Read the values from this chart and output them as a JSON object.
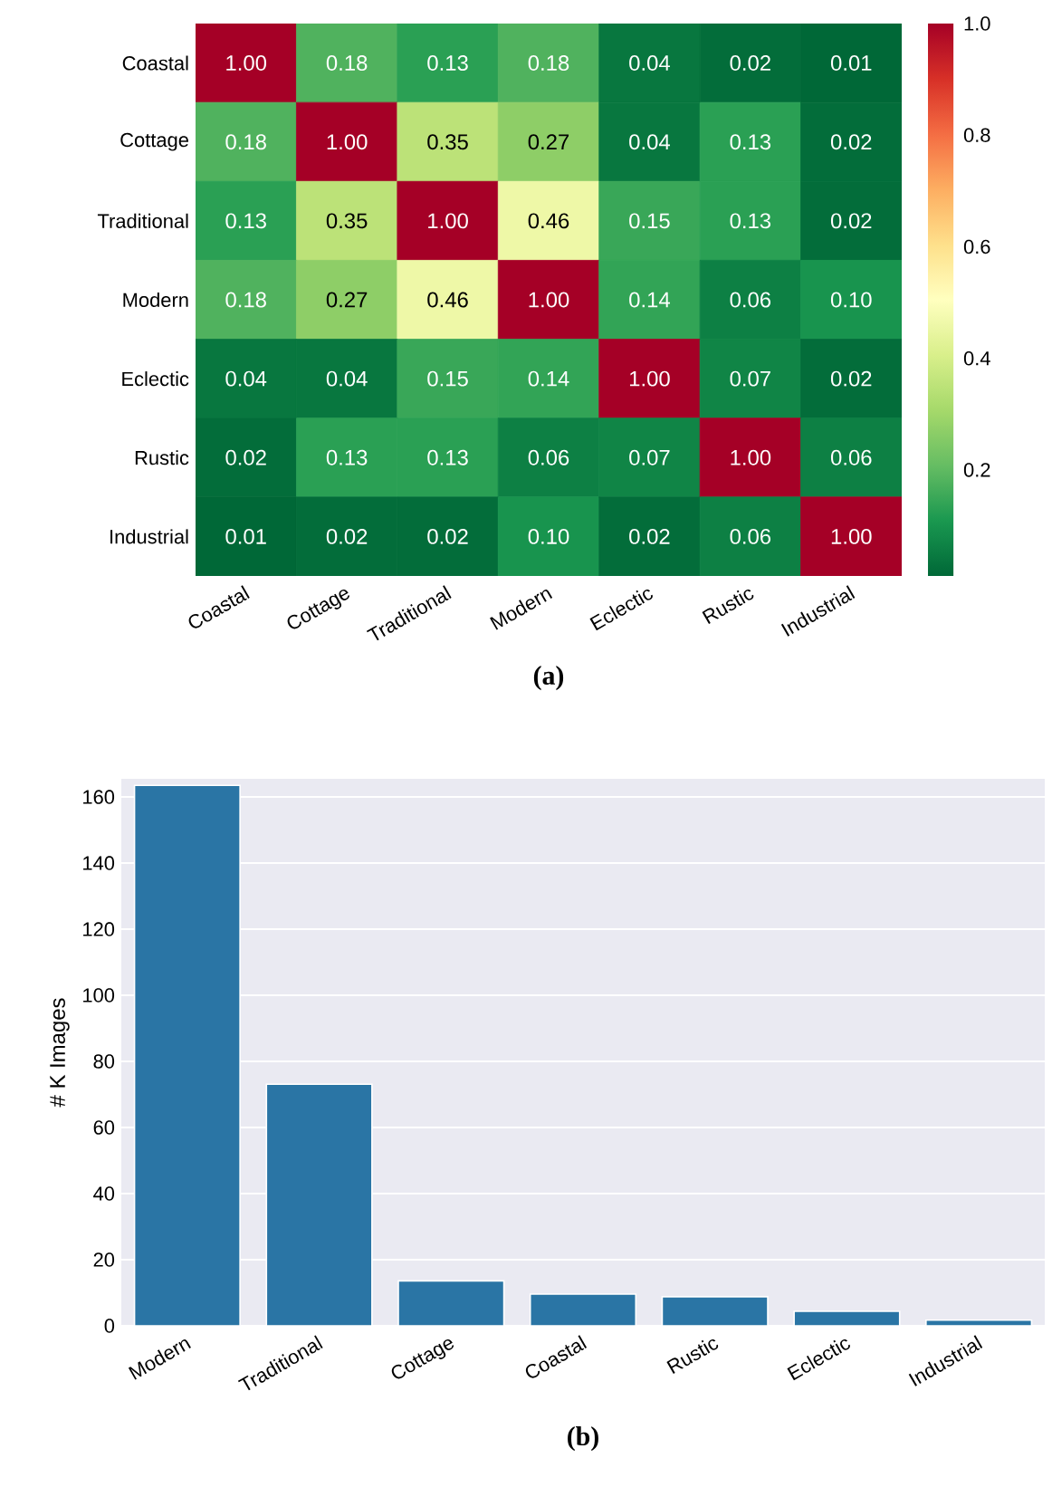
{
  "chart_data": [
    {
      "type": "heatmap",
      "title": "(a)",
      "categories": [
        "Coastal",
        "Cottage",
        "Traditional",
        "Modern",
        "Eclectic",
        "Rustic",
        "Industrial"
      ],
      "y_categories": [
        "Coastal",
        "Cottage",
        "Traditional",
        "Modern",
        "Eclectic",
        "Rustic",
        "Industrial"
      ],
      "cells": [
        [
          1.0,
          0.18,
          0.13,
          0.18,
          0.04,
          0.02,
          0.01
        ],
        [
          0.18,
          1.0,
          0.35,
          0.27,
          0.04,
          0.13,
          0.02
        ],
        [
          0.13,
          0.35,
          1.0,
          0.46,
          0.15,
          0.13,
          0.02
        ],
        [
          0.18,
          0.27,
          0.46,
          1.0,
          0.14,
          0.06,
          0.1
        ],
        [
          0.04,
          0.04,
          0.15,
          0.14,
          1.0,
          0.07,
          0.02
        ],
        [
          0.02,
          0.13,
          0.13,
          0.06,
          0.07,
          1.0,
          0.06
        ],
        [
          0.01,
          0.02,
          0.02,
          0.1,
          0.02,
          0.06,
          1.0
        ]
      ],
      "cell_labels": [
        [
          "1.00",
          "0.18",
          "0.13",
          "0.18",
          "0.04",
          "0.02",
          "0.01"
        ],
        [
          "0.18",
          "1.00",
          "0.35",
          "0.27",
          "0.04",
          "0.13",
          "0.02"
        ],
        [
          "0.13",
          "0.35",
          "1.00",
          "0.46",
          "0.15",
          "0.13",
          "0.02"
        ],
        [
          "0.18",
          "0.27",
          "0.46",
          "1.00",
          "0.14",
          "0.06",
          "0.10"
        ],
        [
          "0.04",
          "0.04",
          "0.15",
          "0.14",
          "1.00",
          "0.07",
          "0.02"
        ],
        [
          "0.02",
          "0.13",
          "0.13",
          "0.06",
          "0.07",
          "1.00",
          "0.06"
        ],
        [
          "0.01",
          "0.02",
          "0.02",
          "0.10",
          "0.02",
          "0.06",
          "1.00"
        ]
      ],
      "clim": [
        0.01,
        1.0
      ],
      "cticks": [
        {
          "value": 0.2,
          "label": "0.2"
        },
        {
          "value": 0.4,
          "label": "0.4"
        },
        {
          "value": 0.6,
          "label": "0.6"
        },
        {
          "value": 0.8,
          "label": "0.8"
        },
        {
          "value": 1.0,
          "label": "1.0"
        }
      ]
    },
    {
      "type": "bar",
      "title": "(b)",
      "ylabel": "# K Images",
      "categories": [
        "Modern",
        "Traditional",
        "Cottage",
        "Coastal",
        "Rustic",
        "Eclectic",
        "Industrial"
      ],
      "values": [
        163.5,
        73.1,
        13.6,
        9.6,
        8.8,
        4.4,
        1.7
      ],
      "color": "#2a75a5",
      "ylim": [
        0,
        165.5
      ],
      "yticks": [
        0,
        20,
        40,
        60,
        80,
        100,
        120,
        140,
        160
      ],
      "grid": "y"
    }
  ]
}
